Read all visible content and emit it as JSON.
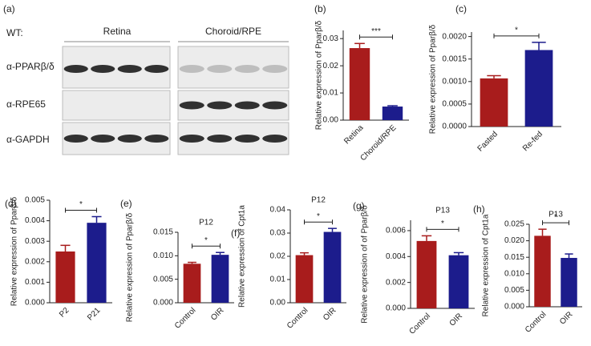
{
  "blot": {
    "panel": "(a)",
    "label": "WT:",
    "groups": [
      "Retina",
      "Choroid/RPE"
    ],
    "rows": [
      "α-PPARβ/δ",
      "α-RPE65",
      "α-GAPDH"
    ]
  },
  "chart_data": [
    {
      "type": "bar",
      "panel": "(b)",
      "ylabel": "Relative expression of Pparβ/δ",
      "categories": [
        "Retina",
        "Choroid/RPE"
      ],
      "values": [
        0.0265,
        0.005
      ],
      "errors": [
        0.0017,
        0.0003
      ],
      "colors": [
        "#a81c1c",
        "#1c1c8c"
      ],
      "ylim": [
        0,
        0.033
      ],
      "yticks": [
        {
          "value": 0,
          "label": "0.00"
        },
        0.01,
        0.02,
        0.03
      ],
      "significance": "***"
    },
    {
      "type": "bar",
      "panel": "(c)",
      "ylabel": "Relative expression of Pparβ/δ",
      "categories": [
        "Fasted",
        "Re-fed"
      ],
      "values": [
        0.00107,
        0.0017
      ],
      "errors": [
        6e-05,
        0.00017
      ],
      "colors": [
        "#a81c1c",
        "#1c1c8c"
      ],
      "ylim": [
        0,
        0.0021
      ],
      "yticks": [
        {
          "value": 0,
          "label": "0.0000"
        },
        0.0005,
        {
          "value": 0.001,
          "label": "0.0010"
        },
        0.0015,
        {
          "value": 0.002,
          "label": "0.0020"
        }
      ],
      "significance": "*"
    },
    {
      "type": "bar",
      "panel": "(d)",
      "ylabel": "Relative expression of Pparβ/δ",
      "categories": [
        "P2",
        "P21"
      ],
      "values": [
        0.0025,
        0.0039
      ],
      "errors": [
        0.0003,
        0.0003
      ],
      "colors": [
        "#a81c1c",
        "#1c1c8c"
      ],
      "ylim": [
        0,
        0.005
      ],
      "yticks": [
        {
          "value": 0,
          "label": "0.000"
        },
        0.001,
        0.002,
        0.003,
        0.004,
        0.005
      ],
      "significance": "*"
    },
    {
      "type": "bar",
      "panel": "(e)",
      "title": "P12",
      "ylabel": "Relative expression of Pparβ/δ",
      "categories": [
        "Control",
        "OIR"
      ],
      "values": [
        0.0083,
        0.0102
      ],
      "errors": [
        0.0003,
        0.0005
      ],
      "colors": [
        "#a81c1c",
        "#1c1c8c"
      ],
      "ylim": [
        0,
        0.015
      ],
      "yticks": [
        {
          "value": 0,
          "label": "0.000"
        },
        0.005,
        {
          "value": 0.01,
          "label": "0.010"
        },
        0.015
      ],
      "significance": "*"
    },
    {
      "type": "bar",
      "panel": "(f)",
      "title": "P12",
      "ylabel": "Relative expression of Cpt1a",
      "categories": [
        "Control",
        "OIR"
      ],
      "values": [
        0.0205,
        0.0305
      ],
      "errors": [
        0.001,
        0.0015
      ],
      "colors": [
        "#a81c1c",
        "#1c1c8c"
      ],
      "ylim": [
        0,
        0.04
      ],
      "yticks": [
        {
          "value": 0,
          "label": "0.00"
        },
        0.01,
        0.02,
        0.03,
        0.04
      ],
      "significance": "*"
    },
    {
      "type": "bar",
      "panel": "(g)",
      "title": "P13",
      "ylabel": "Relative expression of of Pparβ/δ",
      "categories": [
        "Control",
        "OIR"
      ],
      "values": [
        0.0052,
        0.0041
      ],
      "errors": [
        0.0004,
        0.0002
      ],
      "colors": [
        "#a81c1c",
        "#1c1c8c"
      ],
      "ylim": [
        0,
        0.0068
      ],
      "yticks": [
        {
          "value": 0,
          "label": "0.000"
        },
        0.002,
        0.004,
        0.006
      ],
      "significance": "*"
    },
    {
      "type": "bar",
      "panel": "(h)",
      "title": "P13",
      "ylabel": "Relative expression of Cpt1a",
      "categories": [
        "Control",
        "OIR"
      ],
      "values": [
        0.0215,
        0.0148
      ],
      "errors": [
        0.002,
        0.0012
      ],
      "colors": [
        "#a81c1c",
        "#1c1c8c"
      ],
      "ylim": [
        0,
        0.025
      ],
      "yticks": [
        {
          "value": 0,
          "label": "0.000"
        },
        0.005,
        {
          "value": 0.01,
          "label": "0.010"
        },
        0.015,
        {
          "value": 0.02,
          "label": "0.020"
        },
        0.025
      ],
      "significance": "*"
    }
  ]
}
